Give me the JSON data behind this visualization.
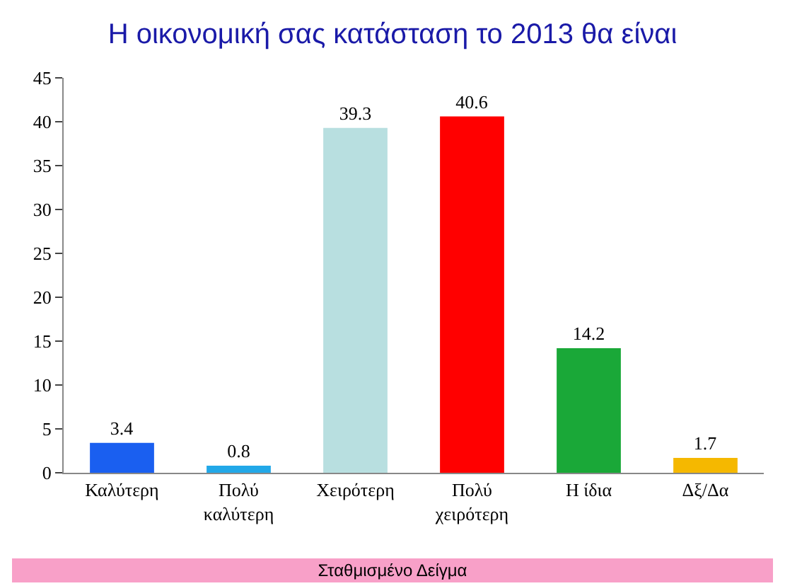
{
  "chart_data": {
    "type": "bar",
    "title": "Η οικονομική σας κατάσταση το 2013 θα είναι",
    "categories": [
      "Καλύτερη",
      "Πολύ καλύτερη",
      "Χειρότερη",
      "Πολύ χειρότερη",
      "Η ίδια",
      "Δξ/Δα"
    ],
    "values": [
      3.4,
      0.8,
      39.3,
      40.6,
      14.2,
      1.7
    ],
    "colors": [
      "#1a5ff0",
      "#22a8e8",
      "#b8dfe0",
      "#ff0000",
      "#1aa838",
      "#f5b800"
    ],
    "ylim": [
      0,
      45
    ],
    "yticks": [
      0,
      5,
      10,
      15,
      20,
      25,
      30,
      35,
      40,
      45
    ],
    "legend": false,
    "data_labels": true,
    "annotations": [
      "Σταθμισμένο Δείγμα"
    ]
  }
}
